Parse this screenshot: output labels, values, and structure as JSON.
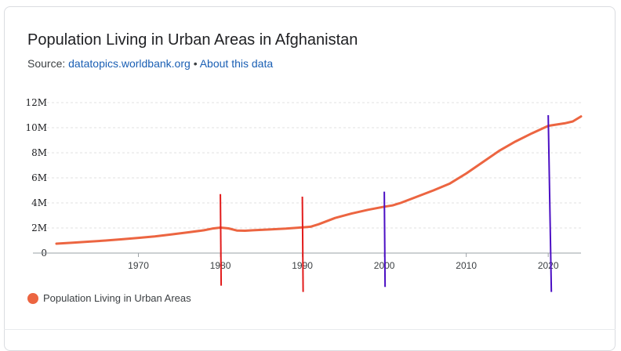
{
  "header": {
    "title": "Population Living in Urban Areas in Afghanistan",
    "source_label": "Source:",
    "source_link": "datatopics.worldbank.org",
    "separator": "•",
    "about_link": "About this data"
  },
  "legend": {
    "label": "Population Living in Urban Areas"
  },
  "colors": {
    "series": "#ec6541",
    "marker_red": "#e21b1b",
    "marker_purple": "#4b0fc4",
    "gridline": "#e0e0e0",
    "link": "#1a5fb4"
  },
  "chart_data": {
    "type": "line",
    "title": "Population Living in Urban Areas in Afghanistan",
    "xlabel": "",
    "ylabel": "",
    "xlim": [
      1960,
      2024
    ],
    "ylim": [
      0,
      12000000
    ],
    "y_ticks": [
      {
        "value": 0,
        "label": "0"
      },
      {
        "value": 2000000,
        "label": "2M"
      },
      {
        "value": 4000000,
        "label": "4M"
      },
      {
        "value": 6000000,
        "label": "6M"
      },
      {
        "value": 8000000,
        "label": "8M"
      },
      {
        "value": 10000000,
        "label": "10M"
      },
      {
        "value": 12000000,
        "label": "12M"
      }
    ],
    "x_ticks": [
      {
        "value": 1970,
        "label": "1970"
      },
      {
        "value": 1980,
        "label": "1980"
      },
      {
        "value": 1990,
        "label": "1990"
      },
      {
        "value": 2000,
        "label": "2000"
      },
      {
        "value": 2010,
        "label": "2010"
      },
      {
        "value": 2020,
        "label": "2020"
      }
    ],
    "grid": true,
    "legend_position": "bottom-left",
    "series": [
      {
        "name": "Population Living in Urban Areas",
        "x": [
          1960,
          1962,
          1964,
          1966,
          1968,
          1970,
          1972,
          1974,
          1976,
          1978,
          1979,
          1980,
          1981,
          1982,
          1983,
          1984,
          1986,
          1988,
          1990,
          1991,
          1992,
          1994,
          1996,
          1998,
          2000,
          2001,
          2002,
          2004,
          2006,
          2008,
          2010,
          2012,
          2014,
          2016,
          2018,
          2020,
          2021,
          2022,
          2023,
          2024
        ],
        "values": [
          750000,
          830000,
          910000,
          1000000,
          1100000,
          1210000,
          1330000,
          1480000,
          1650000,
          1820000,
          1950000,
          2030000,
          1970000,
          1800000,
          1780000,
          1820000,
          1880000,
          1950000,
          2050000,
          2100000,
          2300000,
          2800000,
          3150000,
          3450000,
          3700000,
          3800000,
          4000000,
          4500000,
          5000000,
          5550000,
          6350000,
          7250000,
          8150000,
          8900000,
          9550000,
          10150000,
          10250000,
          10350000,
          10500000,
          10900000
        ]
      }
    ],
    "annotations": [
      {
        "type": "vline",
        "x": 1980,
        "color": "#e21b1b",
        "y_from": -2600000,
        "y_to": 4700000
      },
      {
        "type": "vline",
        "x": 1990,
        "color": "#e21b1b",
        "y_from": -3100000,
        "y_to": 4500000
      },
      {
        "type": "vline",
        "x": 2000,
        "color": "#4b0fc4",
        "y_from": -2700000,
        "y_to": 4900000
      },
      {
        "type": "vline",
        "x": 2020,
        "color": "#4b0fc4",
        "y_from": -3100000,
        "y_to": 11000000
      }
    ]
  }
}
